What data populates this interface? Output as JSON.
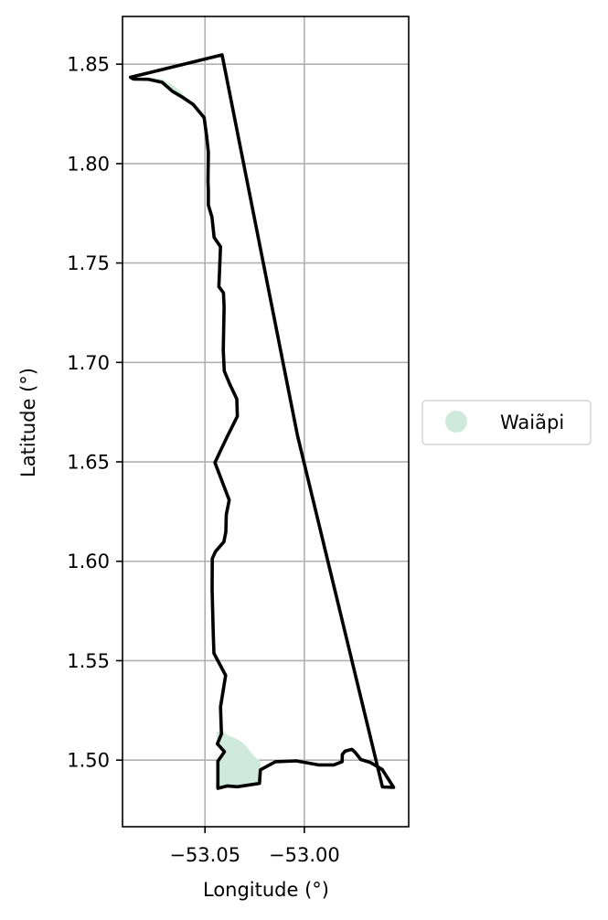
{
  "map": {
    "xlabel": "Longitude (°)",
    "ylabel": "Latitude (°)",
    "xlim": [
      -53.0915,
      -52.9475
    ],
    "ylim": [
      1.4665,
      1.874
    ],
    "grid": true,
    "x_ticks": [
      {
        "value": -53.05,
        "label": "−53.05"
      },
      {
        "value": -53.0,
        "label": "−53.00"
      }
    ],
    "y_ticks": [
      {
        "value": 1.5,
        "label": "1.50"
      },
      {
        "value": 1.55,
        "label": "1.55"
      },
      {
        "value": 1.6,
        "label": "1.60"
      },
      {
        "value": 1.65,
        "label": "1.65"
      },
      {
        "value": 1.7,
        "label": "1.70"
      },
      {
        "value": 1.75,
        "label": "1.75"
      },
      {
        "value": 1.8,
        "label": "1.80"
      },
      {
        "value": 1.85,
        "label": "1.85"
      }
    ],
    "legend": {
      "placement": "outside-right",
      "entries": [
        {
          "label": "Waiãpi",
          "color": "#cfeadc"
        }
      ]
    },
    "territory": {
      "name": "Waiãpi",
      "fill_color": "#cfeadc",
      "boundary_color": "#000000",
      "boundary": [
        [
          -53.0414,
          1.8547
        ],
        [
          -53.0035,
          1.6634
        ],
        [
          -52.9607,
          1.4865
        ],
        [
          -52.9551,
          1.4863
        ],
        [
          -52.9608,
          1.4953
        ],
        [
          -52.9669,
          1.4989
        ],
        [
          -52.9716,
          1.5003
        ],
        [
          -52.9745,
          1.504
        ],
        [
          -52.9761,
          1.5054
        ],
        [
          -52.9795,
          1.5045
        ],
        [
          -52.9809,
          1.5029
        ],
        [
          -52.981,
          1.4992
        ],
        [
          -52.9852,
          1.4976
        ],
        [
          -52.9929,
          1.4976
        ],
        [
          -53.0041,
          1.4996
        ],
        [
          -53.0146,
          1.4992
        ],
        [
          -53.0221,
          1.4951
        ],
        [
          -53.0226,
          1.4883
        ],
        [
          -53.0337,
          1.4866
        ],
        [
          -53.0387,
          1.487
        ],
        [
          -53.0435,
          1.4858
        ],
        [
          -53.0435,
          1.4995
        ],
        [
          -53.0402,
          1.5042
        ],
        [
          -53.0438,
          1.5082
        ],
        [
          -53.0417,
          1.5131
        ],
        [
          -53.0422,
          1.5268
        ],
        [
          -53.0396,
          1.5426
        ],
        [
          -53.0455,
          1.5537
        ],
        [
          -53.0458,
          1.5629
        ],
        [
          -53.0464,
          1.5856
        ],
        [
          -53.0463,
          1.6014
        ],
        [
          -53.0447,
          1.6049
        ],
        [
          -53.0405,
          1.6098
        ],
        [
          -53.0395,
          1.6148
        ],
        [
          -53.0393,
          1.6234
        ],
        [
          -53.0378,
          1.6308
        ],
        [
          -53.045,
          1.6496
        ],
        [
          -53.0425,
          1.655
        ],
        [
          -53.0389,
          1.6625
        ],
        [
          -53.0337,
          1.6729
        ],
        [
          -53.034,
          1.6816
        ],
        [
          -53.0376,
          1.6892
        ],
        [
          -53.0403,
          1.6957
        ],
        [
          -53.0408,
          1.706
        ],
        [
          -53.0404,
          1.7279
        ],
        [
          -53.0407,
          1.735
        ],
        [
          -53.043,
          1.7381
        ],
        [
          -53.0422,
          1.7582
        ],
        [
          -53.0454,
          1.7629
        ],
        [
          -53.0465,
          1.7732
        ],
        [
          -53.0483,
          1.7791
        ],
        [
          -53.0483,
          1.7866
        ],
        [
          -53.0485,
          1.7907
        ],
        [
          -53.0483,
          1.8057
        ],
        [
          -53.0492,
          1.8142
        ],
        [
          -53.0504,
          1.8231
        ],
        [
          -53.0559,
          1.8297
        ],
        [
          -53.0617,
          1.8336
        ],
        [
          -53.0664,
          1.8364
        ],
        [
          -53.0716,
          1.8409
        ],
        [
          -53.0784,
          1.8424
        ],
        [
          -53.0859,
          1.8425
        ],
        [
          -53.0875,
          1.8434
        ],
        [
          -53.0414,
          1.8547
        ]
      ],
      "fill_pieces": [
        [
          [
            -53.0772,
            1.8433
          ],
          [
            -53.0715,
            1.8424
          ],
          [
            -53.0662,
            1.8395
          ],
          [
            -53.0624,
            1.8366
          ],
          [
            -53.0587,
            1.8316
          ],
          [
            -53.0565,
            1.829
          ],
          [
            -53.0615,
            1.832
          ],
          [
            -53.0666,
            1.8353
          ],
          [
            -53.0716,
            1.8398
          ]
        ],
        [
          [
            -53.0435,
            1.4858
          ],
          [
            -53.0435,
            1.4995
          ],
          [
            -53.0405,
            1.5042
          ],
          [
            -53.0438,
            1.5082
          ],
          [
            -53.0442,
            1.5141
          ],
          [
            -53.0412,
            1.5146
          ],
          [
            -53.0382,
            1.5122
          ],
          [
            -53.0356,
            1.5114
          ],
          [
            -53.0326,
            1.5098
          ],
          [
            -53.0309,
            1.5087
          ],
          [
            -53.0294,
            1.5071
          ],
          [
            -53.0272,
            1.5044
          ],
          [
            -53.0249,
            1.5016
          ],
          [
            -53.0221,
            1.4996
          ],
          [
            -53.0221,
            1.4951
          ],
          [
            -53.0226,
            1.4883
          ],
          [
            -53.0337,
            1.4866
          ],
          [
            -53.0387,
            1.487
          ]
        ]
      ]
    }
  }
}
